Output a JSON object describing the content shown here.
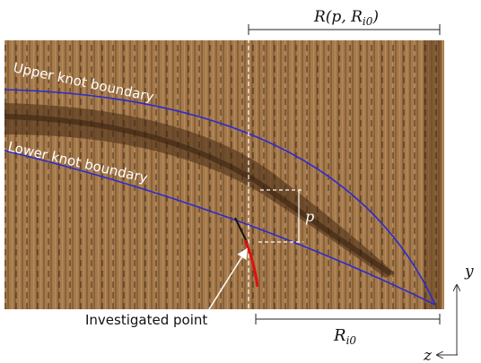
{
  "figure": {
    "top_dimension": {
      "prefix": "R(p, R",
      "subscript": "i0",
      "suffix": ")"
    },
    "upper_boundary_label": "Upper knot boundary",
    "lower_boundary_label": "Lower knot boundary",
    "p_label": "p",
    "point_label": "Investigated point",
    "bottom_dimension": {
      "prefix": "R",
      "subscript": "i0"
    },
    "axis_y_label": "y",
    "axis_z_label": "z"
  }
}
